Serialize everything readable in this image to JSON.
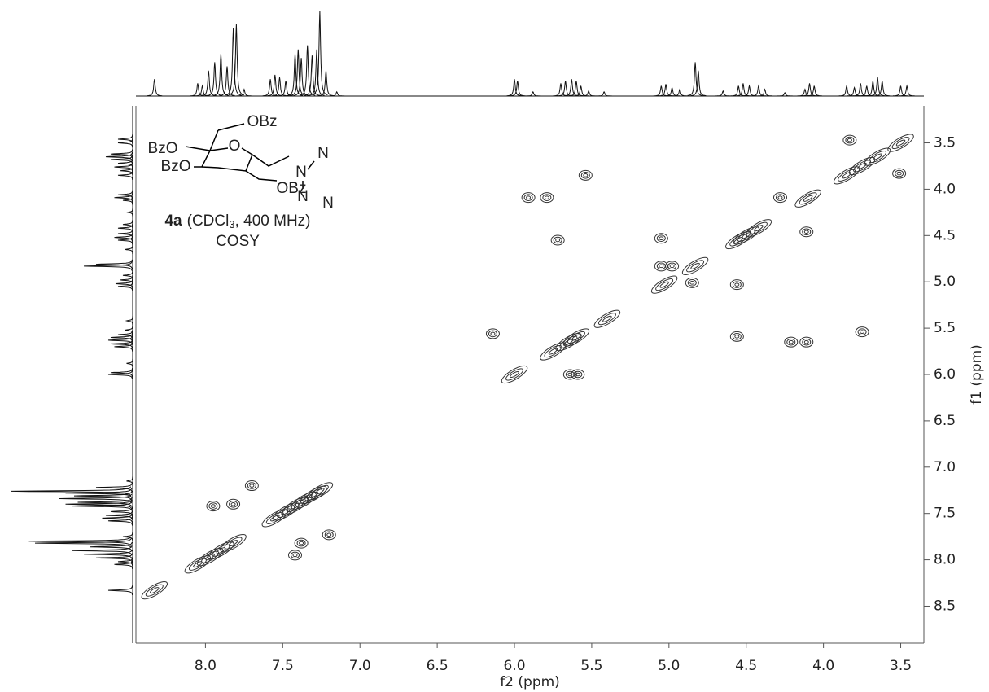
{
  "chart_data": {
    "type": "contour",
    "xlabel": "f2 (ppm)",
    "ylabel": "f1 (ppm)",
    "xlim": [
      8.45,
      3.35
    ],
    "ylim": [
      3.1,
      8.9
    ],
    "xticks": [
      {
        "value": 8,
        "label": "8.0"
      },
      7.5,
      {
        "value": 7,
        "label": "7.0"
      },
      6.5,
      {
        "value": 6,
        "label": "6.0"
      },
      5.5,
      {
        "value": 5,
        "label": "5.0"
      },
      4.5,
      {
        "value": 4,
        "label": "4.0"
      },
      3.5
    ],
    "yticks": [
      3.5,
      {
        "value": 4,
        "label": "4.0"
      },
      4.5,
      {
        "value": 5,
        "label": "5.0"
      },
      5.5,
      {
        "value": 6,
        "label": "6.0"
      },
      6.5,
      {
        "value": 7,
        "label": "7.0"
      },
      7.5,
      {
        "value": 8,
        "label": "8.0"
      },
      8.5
    ],
    "color": "#333333",
    "cross_peaks": {
      "x": [
        8.33,
        8.05,
        7.97,
        7.9,
        7.82,
        7.55,
        7.48,
        7.42,
        7.36,
        7.3,
        7.26,
        7.95,
        7.82,
        7.42,
        7.38,
        7.7,
        7.2,
        6.0,
        5.75,
        5.65,
        5.6,
        5.4,
        5.03,
        4.83,
        4.55,
        4.5,
        4.42,
        4.1,
        3.85,
        3.75,
        3.65,
        3.5,
        5.54,
        5.91,
        5.79,
        5.72,
        5.05,
        5.05,
        4.98,
        4.85,
        4.56,
        4.28,
        4.11,
        4.56,
        4.21,
        4.11,
        3.75,
        6.14,
        5.64,
        5.59,
        3.83,
        3.51
      ],
      "y": [
        8.33,
        8.05,
        7.97,
        7.9,
        7.82,
        7.55,
        7.48,
        7.42,
        7.36,
        7.3,
        7.26,
        7.42,
        7.4,
        7.95,
        7.82,
        7.2,
        7.73,
        6.0,
        5.75,
        5.65,
        5.6,
        5.4,
        5.03,
        4.83,
        4.55,
        4.5,
        4.42,
        4.1,
        3.85,
        3.75,
        3.65,
        3.5,
        3.85,
        4.09,
        4.09,
        4.55,
        4.53,
        4.83,
        4.83,
        5.01,
        5.03,
        4.09,
        4.46,
        5.59,
        5.65,
        5.65,
        5.54,
        5.56,
        6.0,
        6.0,
        3.47,
        3.83
      ]
    },
    "projection": {
      "ppm": [
        8.33,
        8.05,
        8.02,
        7.98,
        7.94,
        7.9,
        7.86,
        7.82,
        7.8,
        7.75,
        7.58,
        7.55,
        7.52,
        7.48,
        7.42,
        7.4,
        7.38,
        7.34,
        7.31,
        7.28,
        7.26,
        7.22,
        7.15,
        6.0,
        5.98,
        5.88,
        5.7,
        5.67,
        5.63,
        5.6,
        5.57,
        5.52,
        5.42,
        5.05,
        5.02,
        4.98,
        4.93,
        4.83,
        4.81,
        4.65,
        4.55,
        4.52,
        4.48,
        4.42,
        4.38,
        4.25,
        4.12,
        4.09,
        4.06,
        3.85,
        3.8,
        3.76,
        3.72,
        3.68,
        3.65,
        3.62,
        3.5,
        3.46
      ],
      "intensity": [
        20,
        15,
        12,
        30,
        40,
        50,
        35,
        80,
        85,
        8,
        20,
        25,
        22,
        18,
        50,
        55,
        45,
        60,
        48,
        55,
        100,
        30,
        5,
        20,
        18,
        5,
        15,
        18,
        20,
        18,
        12,
        6,
        5,
        12,
        14,
        10,
        8,
        40,
        30,
        6,
        12,
        15,
        12,
        12,
        8,
        4,
        8,
        15,
        12,
        12,
        10,
        15,
        12,
        18,
        22,
        18,
        12,
        12
      ]
    },
    "annotations": {
      "structure": [
        "OBz",
        "BzO",
        "O",
        "BzO",
        "OBz",
        "N",
        "N",
        "N",
        "N"
      ],
      "compound": "4a",
      "solvent": "(CDCl",
      "subscript": "3",
      "conditions": ", 400 MHz)",
      "experiment": "COSY"
    }
  }
}
